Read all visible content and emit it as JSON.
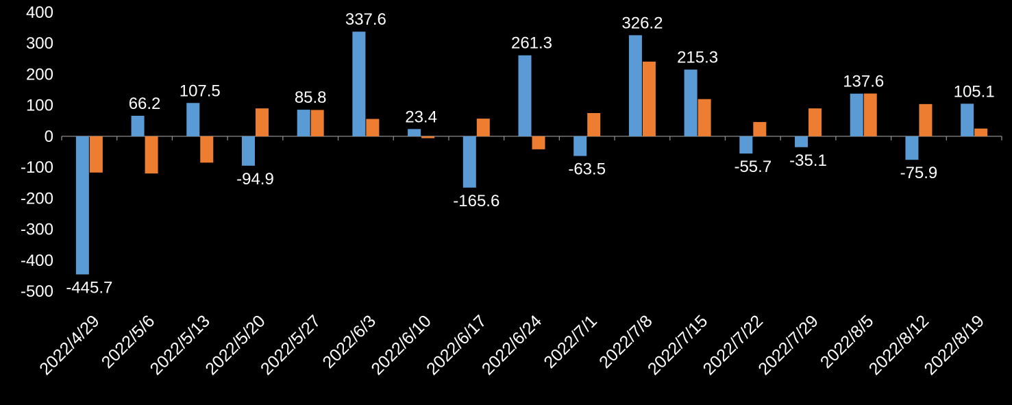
{
  "chart_data": {
    "type": "bar",
    "title": "",
    "categories": [
      "2022/4/29",
      "2022/5/6",
      "2022/5/13",
      "2022/5/20",
      "2022/5/27",
      "2022/6/3",
      "2022/6/10",
      "2022/6/17",
      "2022/6/24",
      "2022/7/1",
      "2022/7/8",
      "2022/7/15",
      "2022/7/22",
      "2022/7/29",
      "2022/8/5",
      "2022/8/12",
      "2022/8/19"
    ],
    "series": [
      {
        "name": "blue",
        "color": "#5B9BD5",
        "values": [
          -445.7,
          66.2,
          107.5,
          -94.9,
          85.8,
          337.6,
          23.4,
          -165.6,
          261.3,
          -63.5,
          326.2,
          215.3,
          -55.7,
          -35.1,
          137.6,
          -75.9,
          105.1
        ]
      },
      {
        "name": "orange",
        "color": "#ED7D31",
        "values": [
          -117,
          -120,
          -85,
          90,
          85,
          56,
          -6,
          57,
          -42,
          75,
          241,
          120,
          46,
          90,
          138,
          104,
          25
        ]
      }
    ],
    "data_labels": {
      "series": "blue",
      "values": [
        "-445.7",
        "66.2",
        "107.5",
        "-94.9",
        "85.8",
        "337.6",
        "23.4",
        "-165.6",
        "261.3",
        "-63.5",
        "326.2",
        "215.3",
        "-55.7",
        "-35.1",
        "137.6",
        "-75.9",
        "105.1"
      ]
    },
    "yticks": [
      "400",
      "300",
      "200",
      "100",
      "0",
      "-100",
      "-200",
      "-300",
      "-400",
      "-500"
    ],
    "ylim": [
      -500,
      400
    ],
    "xlabel": "",
    "ylabel": "",
    "grid": false,
    "legend": "none",
    "background": "#000000",
    "text_color": "#FFFFFF",
    "axis_color": "#8C8C8C"
  }
}
